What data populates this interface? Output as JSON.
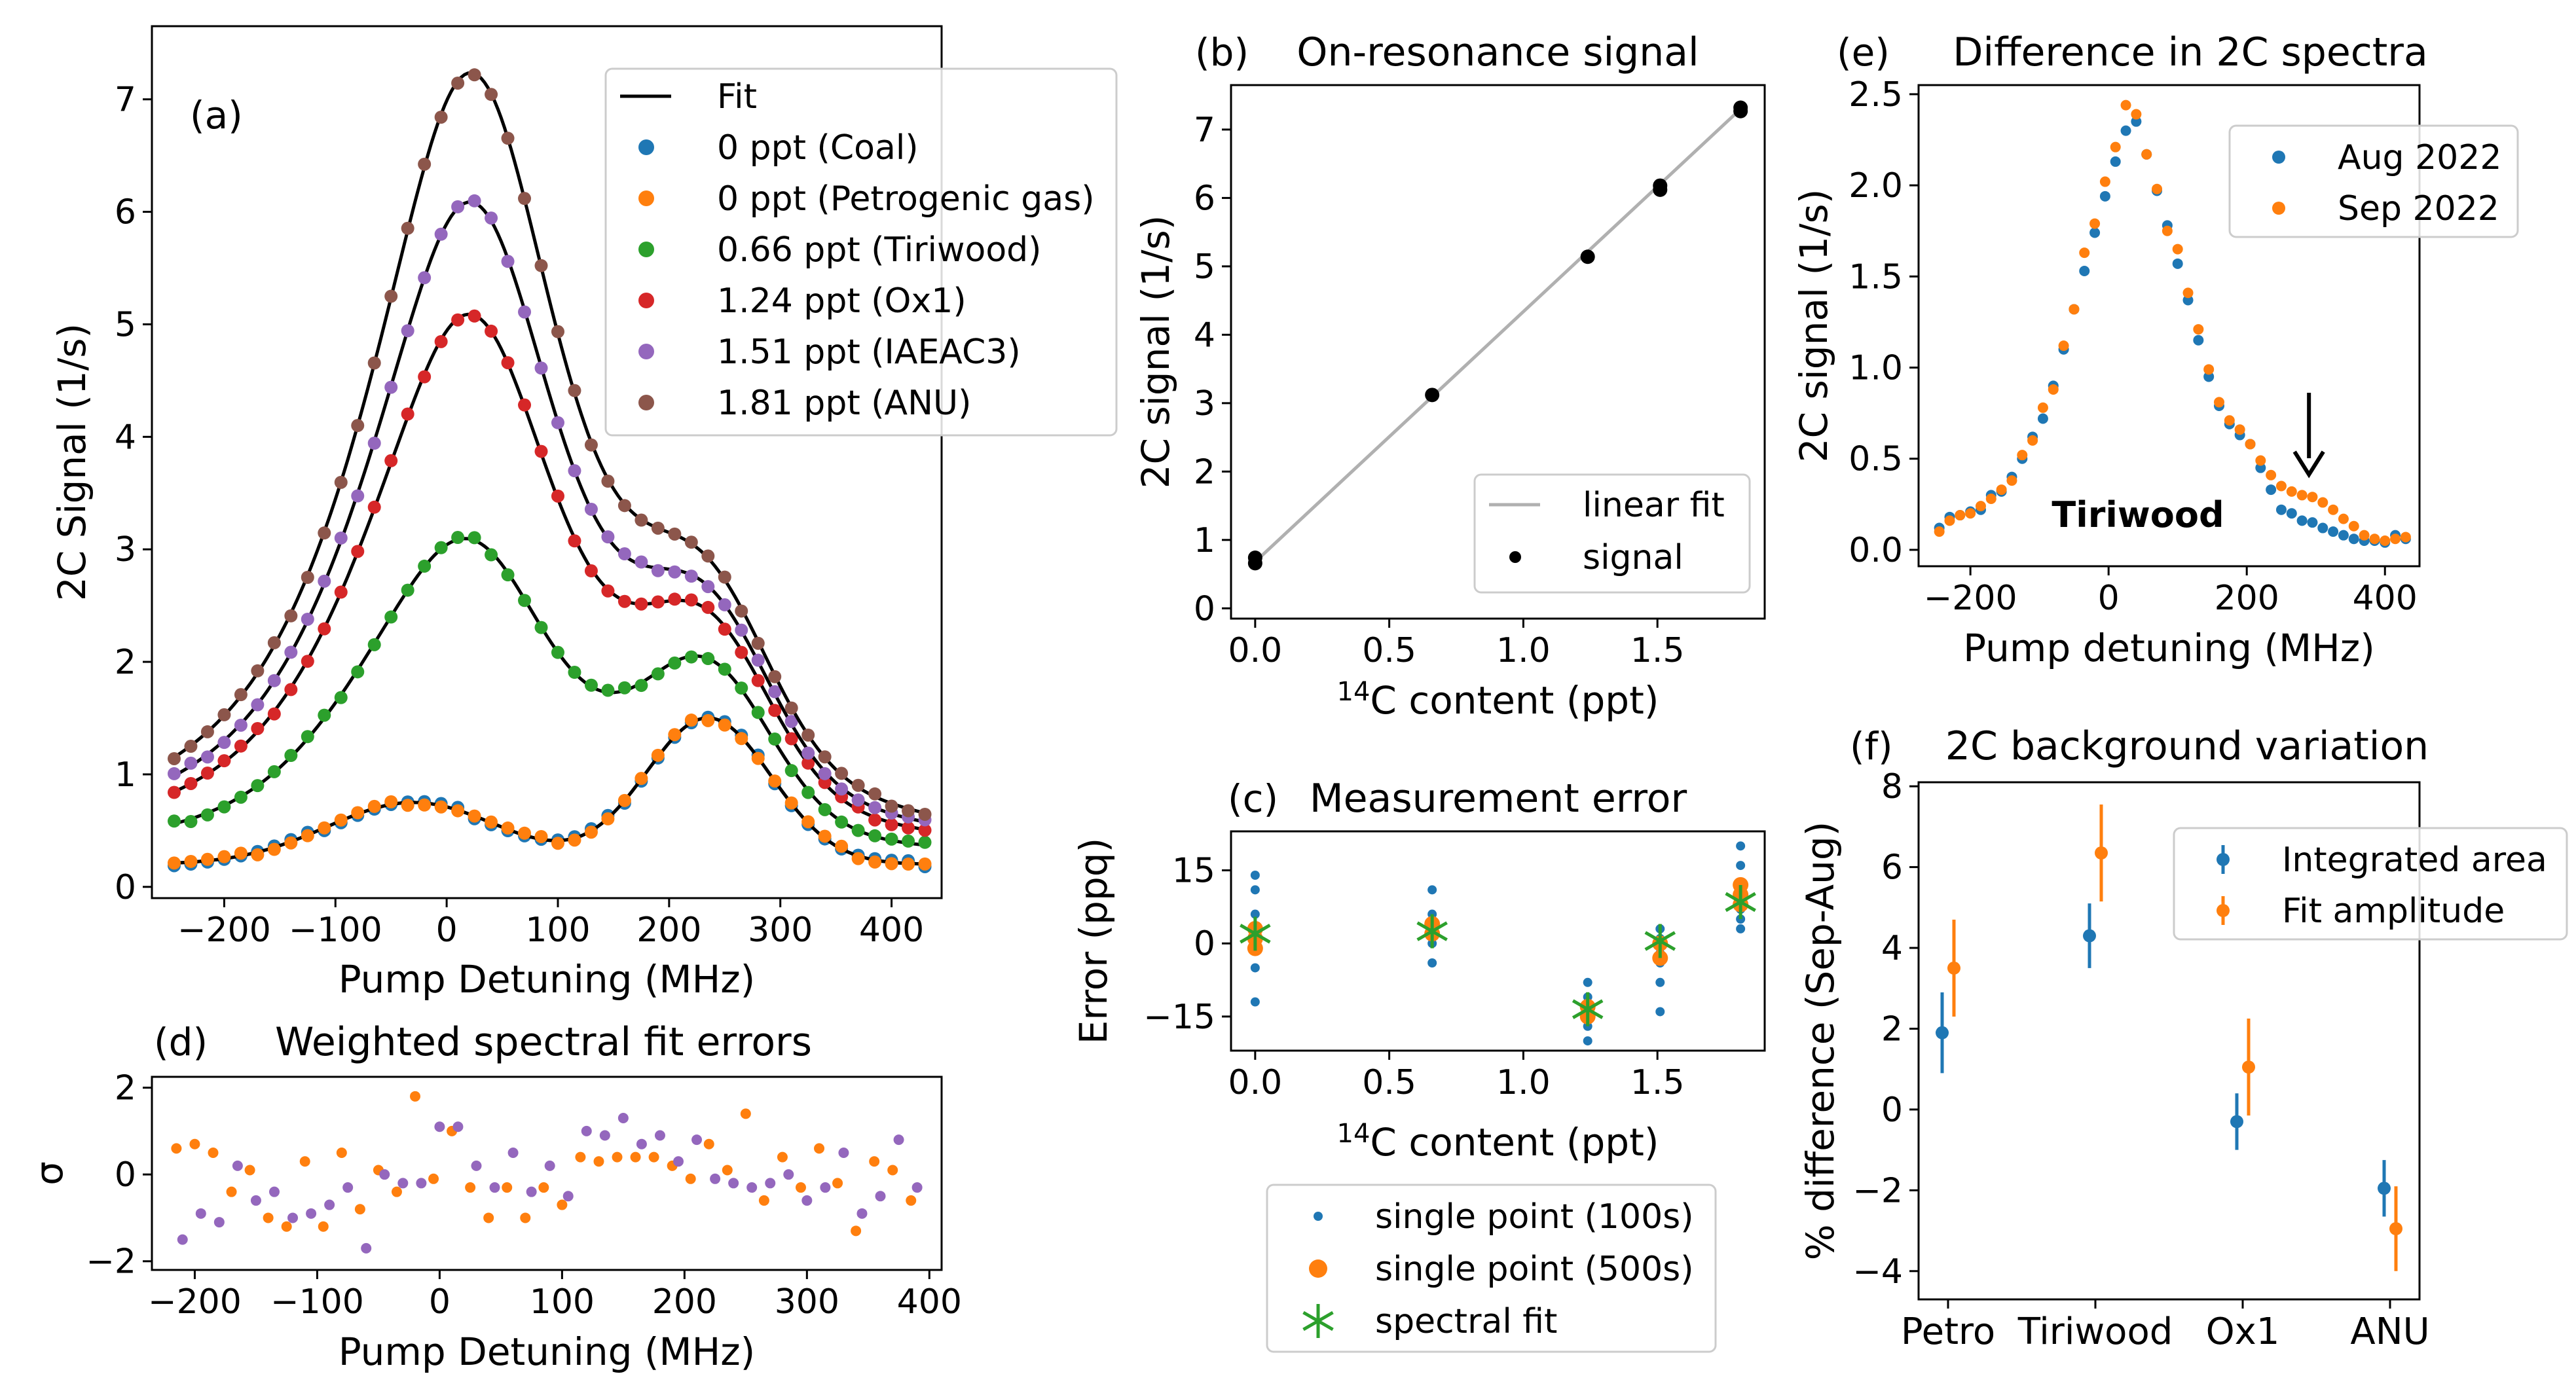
{
  "chart_data": [
    {
      "id": "a",
      "panel_label": "(a)",
      "type": "scatter",
      "title": "",
      "xlabel": "Pump Detuning (MHz)",
      "ylabel": "2C Signal (1/s)",
      "xlim": [
        -265,
        445
      ],
      "ylim": [
        -0.1,
        7.65
      ],
      "xticks": [
        -200,
        -100,
        0,
        100,
        200,
        300,
        400
      ],
      "xtick_labels": [
        "−200",
        "−100",
        "0",
        "100",
        "200",
        "300",
        "400"
      ],
      "yticks": [
        0,
        1,
        2,
        3,
        4,
        5,
        6,
        7
      ],
      "ytick_labels": [
        "0",
        "1",
        "2",
        "3",
        "4",
        "5",
        "6",
        "7"
      ],
      "fit_label": "Fit",
      "fit_color": "#000000",
      "x_start": -245,
      "x_step": 15,
      "n_points": 46,
      "model": {
        "peak_center": 25,
        "peak_width": 110,
        "shoulder_center": 235,
        "shoulder_width": 80,
        "background": 0.2
      },
      "series": [
        {
          "name": "0 ppt (Coal)",
          "color": "#1f77b4",
          "peak": 0.0,
          "shoulder": 1.3,
          "center_bump": 0.55
        },
        {
          "name": "0 ppt (Petrogenic gas)",
          "color": "#ff7f0e",
          "peak": 0.0,
          "shoulder": 1.3,
          "center_bump": 0.55
        },
        {
          "name": "0.66 ppt (Tiriwood)",
          "color": "#2ca02c",
          "peak": 2.45,
          "shoulder": 1.3,
          "center_bump": 0.55
        },
        {
          "name": "1.24 ppt (Ox1)",
          "color": "#d62728",
          "peak": 4.45,
          "shoulder": 1.3,
          "center_bump": 0.55
        },
        {
          "name": "1.51 ppt (IAEAC3)",
          "color": "#9467bd",
          "peak": 5.45,
          "shoulder": 1.3,
          "center_bump": 0.55
        },
        {
          "name": "1.81 ppt (ANU)",
          "color": "#8c564b",
          "peak": 6.6,
          "shoulder": 1.3,
          "center_bump": 0.55
        }
      ]
    },
    {
      "id": "b",
      "panel_label": "(b)",
      "type": "scatter",
      "title": "On-resonance signal",
      "xlabel_sup": "14",
      "xlabel": "C content (ppt)",
      "ylabel": "2C signal (1/s)",
      "xlim": [
        -0.09,
        1.9
      ],
      "ylim": [
        -0.15,
        7.65
      ],
      "xticks": [
        0.0,
        0.5,
        1.0,
        1.5
      ],
      "xtick_labels": [
        "0.0",
        "0.5",
        "1.0",
        "1.5"
      ],
      "yticks": [
        0,
        1,
        2,
        3,
        4,
        5,
        6,
        7
      ],
      "ytick_labels": [
        "0",
        "1",
        "2",
        "3",
        "4",
        "5",
        "6",
        "7"
      ],
      "x": [
        0.0,
        0.0,
        0.66,
        1.24,
        1.51,
        1.51,
        1.81,
        1.81
      ],
      "y": [
        0.66,
        0.74,
        3.12,
        5.14,
        6.12,
        6.18,
        7.27,
        7.32
      ],
      "fit": {
        "label": "linear fit",
        "x": [
          0.0,
          1.81
        ],
        "y": [
          0.68,
          7.3
        ],
        "color": "#b0b0b0"
      },
      "series_label": "signal"
    },
    {
      "id": "c",
      "panel_label": "(c)",
      "type": "scatter",
      "title": "Measurement error",
      "xlabel_sup": "14",
      "xlabel": "C content (ppt)",
      "ylabel": "Error (ppq)",
      "xlim": [
        -0.09,
        1.9
      ],
      "ylim": [
        -22,
        23
      ],
      "xticks": [
        0.0,
        0.5,
        1.0,
        1.5
      ],
      "xtick_labels": [
        "0.0",
        "0.5",
        "1.0",
        "1.5"
      ],
      "yticks": [
        -15,
        0,
        15
      ],
      "ytick_labels": [
        "−15",
        "0",
        "15"
      ],
      "series": [
        {
          "name": "single point (100s)",
          "color": "#1f77b4",
          "marker": "small-dot",
          "x": [
            0,
            0,
            0,
            0,
            0,
            0,
            0,
            0,
            0.66,
            0.66,
            0.66,
            0.66,
            0.66,
            1.24,
            1.24,
            1.24,
            1.24,
            1.24,
            1.24,
            1.51,
            1.51,
            1.51,
            1.51,
            1.51,
            1.51,
            1.81,
            1.81,
            1.81,
            1.81,
            1.81,
            1.81,
            1.81
          ],
          "y": [
            14,
            11,
            6,
            3,
            1,
            -1,
            -5,
            -12,
            11,
            6,
            3,
            0,
            -4,
            -8,
            -11,
            -14,
            -15,
            -17,
            -20,
            3,
            1,
            -2,
            -4,
            -8,
            -14,
            20,
            16,
            12,
            10,
            7,
            5,
            3
          ]
        },
        {
          "name": "single point (500s)",
          "color": "#ff7f0e",
          "marker": "dot",
          "x": [
            0,
            0,
            0,
            0.66,
            0.66,
            1.24,
            1.24,
            1.51,
            1.51,
            1.81,
            1.81,
            1.81
          ],
          "y": [
            3,
            1,
            -1,
            4,
            2,
            -13,
            -15,
            0,
            -3,
            12,
            10,
            8
          ]
        },
        {
          "name": "spectral fit",
          "color": "#2ca02c",
          "marker": "asterisk",
          "x": [
            0,
            0.66,
            1.24,
            1.51,
            1.81
          ],
          "y": [
            2,
            2.5,
            -13.5,
            0.5,
            8.5
          ]
        }
      ]
    },
    {
      "id": "d",
      "panel_label": "(d)",
      "type": "scatter",
      "title": "Weighted spectral fit errors",
      "xlabel": "Pump Detuning (MHz)",
      "ylabel": "σ",
      "xlim": [
        -235,
        410
      ],
      "ylim": [
        -2.2,
        2.25
      ],
      "xticks": [
        -200,
        -100,
        0,
        100,
        200,
        300,
        400
      ],
      "xtick_labels": [
        "−200",
        "−100",
        "0",
        "100",
        "200",
        "300",
        "400"
      ],
      "yticks": [
        -2,
        0,
        2
      ],
      "ytick_labels": [
        "−2",
        "0",
        "2"
      ],
      "series": [
        {
          "name": "orange",
          "color": "#ff7f0e",
          "x": [
            -215,
            -200,
            -185,
            -170,
            -155,
            -140,
            -125,
            -110,
            -95,
            -80,
            -65,
            -50,
            -35,
            -20,
            -5,
            10,
            25,
            40,
            55,
            70,
            85,
            100,
            115,
            130,
            145,
            160,
            175,
            190,
            205,
            220,
            235,
            250,
            265,
            280,
            295,
            310,
            325,
            340,
            355,
            370,
            385
          ],
          "y": [
            0.6,
            0.7,
            0.5,
            -0.4,
            0.1,
            -1.0,
            -1.2,
            0.3,
            -1.2,
            0.5,
            -0.8,
            0.1,
            -0.4,
            1.8,
            -0.1,
            1.0,
            -0.3,
            -1.0,
            -0.3,
            -1.0,
            -0.3,
            -0.7,
            0.4,
            0.3,
            0.4,
            0.4,
            0.4,
            0.2,
            -0.1,
            0.7,
            0.1,
            1.4,
            -0.6,
            0.4,
            -0.3,
            0.6,
            -0.2,
            -1.3,
            0.3,
            0.1,
            -0.6
          ]
        },
        {
          "name": "purple",
          "color": "#9467bd",
          "x": [
            -210,
            -195,
            -180,
            -165,
            -150,
            -135,
            -120,
            -105,
            -90,
            -75,
            -60,
            -45,
            -30,
            -15,
            0,
            15,
            30,
            45,
            60,
            75,
            90,
            105,
            120,
            135,
            150,
            165,
            180,
            195,
            210,
            225,
            240,
            255,
            270,
            285,
            300,
            315,
            330,
            345,
            360,
            375,
            390
          ],
          "y": [
            -1.5,
            -0.9,
            -1.1,
            0.2,
            -0.6,
            -0.4,
            -1.0,
            -0.9,
            -0.7,
            -0.3,
            -1.7,
            0.0,
            -0.2,
            -0.2,
            1.1,
            1.1,
            0.2,
            -0.3,
            0.5,
            -0.4,
            0.2,
            -0.5,
            1.0,
            0.9,
            1.3,
            0.7,
            0.9,
            0.3,
            0.8,
            -0.1,
            -0.2,
            -0.3,
            -0.2,
            0.0,
            -0.6,
            -0.3,
            0.5,
            -0.9,
            -0.5,
            0.8,
            -0.3
          ]
        }
      ]
    },
    {
      "id": "e",
      "panel_label": "(e)",
      "type": "scatter",
      "title": "Difference in 2C spectra",
      "xlabel": "Pump detuning (MHz)",
      "ylabel": "2C signal (1/s)",
      "xlim": [
        -275,
        450
      ],
      "ylim": [
        -0.09,
        2.55
      ],
      "xticks": [
        -200,
        0,
        200,
        400
      ],
      "xtick_labels": [
        "−200",
        "0",
        "200",
        "400"
      ],
      "yticks": [
        0.0,
        0.5,
        1.0,
        1.5,
        2.0,
        2.5
      ],
      "ytick_labels": [
        "0.0",
        "0.5",
        "1.0",
        "1.5",
        "2.0",
        "2.5"
      ],
      "annotation_text": "Tiriwood",
      "annotation_color": "#2ca02c",
      "arrow_x": 290,
      "series": [
        {
          "name": "Aug 2022",
          "color": "#1f77b4",
          "x": [
            -245,
            -230,
            -215,
            -200,
            -185,
            -170,
            -155,
            -140,
            -125,
            -110,
            -95,
            -80,
            -65,
            -50,
            -35,
            -20,
            -5,
            10,
            25,
            40,
            55,
            70,
            85,
            100,
            115,
            130,
            145,
            160,
            175,
            190,
            205,
            220,
            235,
            250,
            265,
            280,
            295,
            310,
            325,
            340,
            355,
            370,
            385,
            400,
            415,
            430
          ],
          "y": [
            0.12,
            0.18,
            0.19,
            0.21,
            0.22,
            0.3,
            0.32,
            0.4,
            0.5,
            0.62,
            0.72,
            0.9,
            1.1,
            1.32,
            1.53,
            1.74,
            1.94,
            2.13,
            2.3,
            2.35,
            2.17,
            1.97,
            1.78,
            1.57,
            1.37,
            1.15,
            0.95,
            0.79,
            0.69,
            0.63,
            0.58,
            0.45,
            0.33,
            0.22,
            0.2,
            0.16,
            0.15,
            0.12,
            0.1,
            0.08,
            0.06,
            0.05,
            0.05,
            0.04,
            0.08,
            0.06
          ]
        },
        {
          "name": "Sep 2022",
          "color": "#ff7f0e",
          "x": [
            -245,
            -230,
            -215,
            -200,
            -185,
            -170,
            -155,
            -140,
            -125,
            -110,
            -95,
            -80,
            -65,
            -50,
            -35,
            -20,
            -5,
            10,
            25,
            40,
            55,
            70,
            85,
            100,
            115,
            130,
            145,
            160,
            175,
            190,
            205,
            220,
            235,
            250,
            265,
            280,
            295,
            310,
            325,
            340,
            355,
            370,
            385,
            400,
            415,
            430
          ],
          "y": [
            0.1,
            0.16,
            0.19,
            0.2,
            0.24,
            0.28,
            0.33,
            0.38,
            0.52,
            0.6,
            0.78,
            0.88,
            1.12,
            1.32,
            1.63,
            1.79,
            2.02,
            2.21,
            2.44,
            2.39,
            2.17,
            1.98,
            1.75,
            1.65,
            1.41,
            1.21,
            0.99,
            0.81,
            0.71,
            0.66,
            0.58,
            0.49,
            0.41,
            0.35,
            0.32,
            0.3,
            0.29,
            0.26,
            0.22,
            0.17,
            0.13,
            0.08,
            0.06,
            0.05,
            0.06,
            0.07
          ]
        }
      ]
    },
    {
      "id": "f",
      "panel_label": "(f)",
      "type": "scatter",
      "title": "2C background variation",
      "xlabel": "",
      "ylabel": "% difference (Sep-Aug)",
      "xlim": [
        -0.2,
        3.2
      ],
      "ylim": [
        -4.7,
        8.1
      ],
      "categories": [
        "Petro",
        "Tiriwood",
        "Ox1",
        "ANU"
      ],
      "yticks": [
        -4,
        -2,
        0,
        2,
        4,
        6,
        8
      ],
      "ytick_labels": [
        "−4",
        "−2",
        "0",
        "2",
        "4",
        "6",
        "8"
      ],
      "series": [
        {
          "name": "Integrated area",
          "color": "#1f77b4",
          "offset": -0.04,
          "values": [
            1.9,
            4.3,
            -0.3,
            -1.95
          ],
          "err": [
            1.0,
            0.8,
            0.7,
            0.7
          ]
        },
        {
          "name": "Fit amplitude",
          "color": "#ff7f0e",
          "offset": 0.04,
          "values": [
            3.5,
            6.35,
            1.05,
            -2.95
          ],
          "err": [
            1.2,
            1.2,
            1.2,
            1.05
          ]
        }
      ]
    }
  ]
}
